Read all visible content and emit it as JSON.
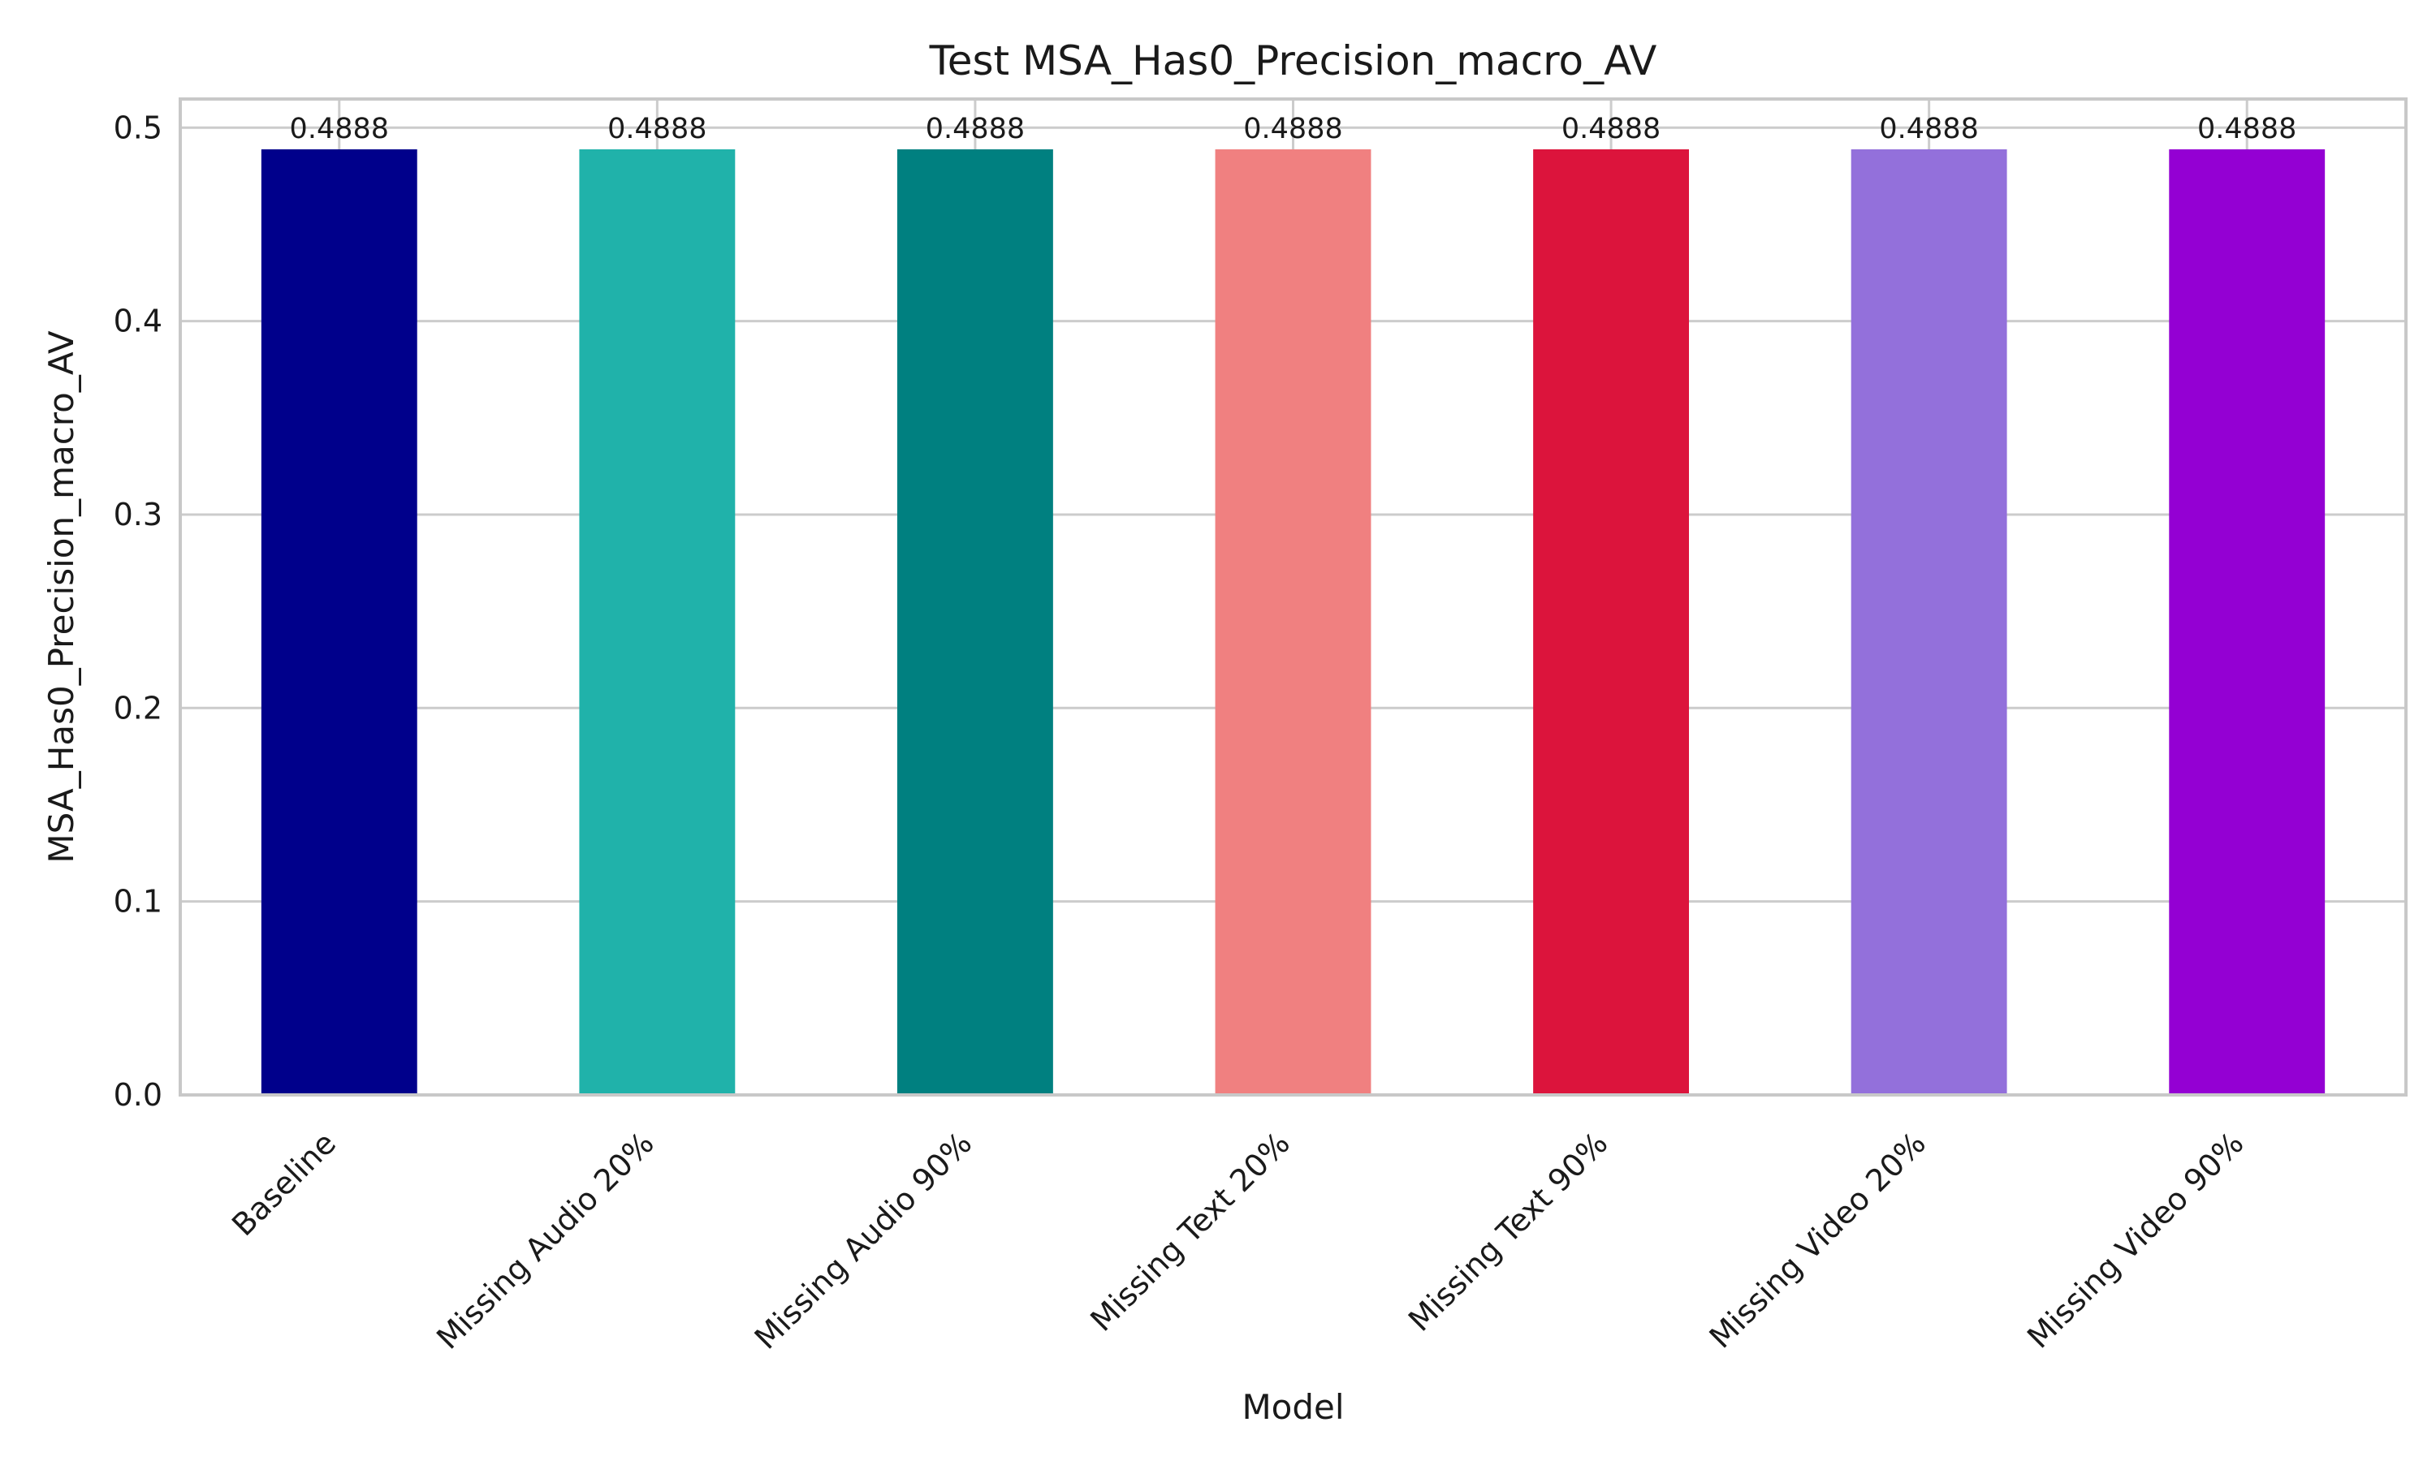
{
  "chart_data": {
    "type": "bar",
    "title": "Test MSA_Has0_Precision_macro_AV",
    "xlabel": "Model",
    "ylabel": "MSA_Has0_Precision_macro_AV",
    "categories": [
      "Baseline",
      "Missing Audio 20%",
      "Missing Audio 90%",
      "Missing Text 20%",
      "Missing Text 90%",
      "Missing Video 20%",
      "Missing Video 90%"
    ],
    "values": [
      0.4888,
      0.4888,
      0.4888,
      0.4888,
      0.4888,
      0.4888,
      0.4888
    ],
    "value_labels": [
      "0.4888",
      "0.4888",
      "0.4888",
      "0.4888",
      "0.4888",
      "0.4888",
      "0.4888"
    ],
    "colors": [
      "#00008b",
      "#20b2aa",
      "#008080",
      "#f08080",
      "#dc143c",
      "#9370db",
      "#9400d3"
    ],
    "ylim": [
      0,
      0.5148
    ],
    "yticks": [
      0.0,
      0.1,
      0.2,
      0.3,
      0.4,
      0.5
    ],
    "ytick_labels": [
      "0.0",
      "0.1",
      "0.2",
      "0.3",
      "0.4",
      "0.5"
    ],
    "grid": true,
    "legend": "none"
  }
}
